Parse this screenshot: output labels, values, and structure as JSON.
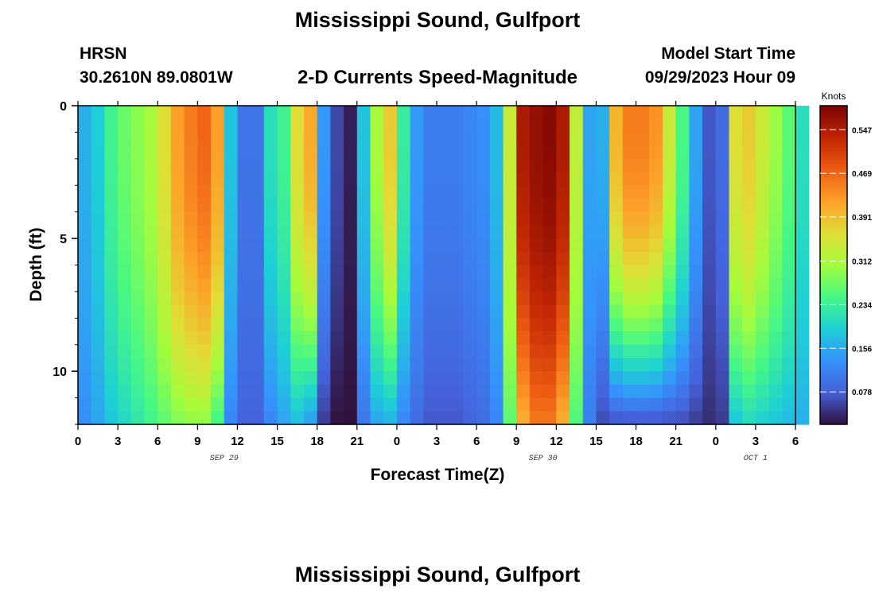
{
  "header": {
    "title": "Mississippi Sound, Gulfport",
    "station": "HRSN",
    "coords": "30.2610N  89.0801W",
    "subtitle": "2-D Currents Speed-Magnitude",
    "model_start_label": "Model Start Time",
    "model_start_value": "09/29/2023 Hour 09",
    "bottom_title": "Mississippi Sound, Gulfport"
  },
  "chart_data": {
    "type": "heatmap",
    "xlabel": "Forecast Time(Z)",
    "ylabel": "Depth (ft)",
    "x_tick_labels": [
      "0",
      "3",
      "6",
      "9",
      "12",
      "15",
      "18",
      "21",
      "0",
      "3",
      "6",
      "9",
      "12",
      "15",
      "18",
      "21",
      "0",
      "3",
      "6"
    ],
    "date_labels": [
      {
        "label": "SEP 29",
        "at_hour": 11
      },
      {
        "label": "SEP 30",
        "at_hour": 35
      },
      {
        "label": "OCT 1",
        "at_hour": 51
      }
    ],
    "x_range_hours": [
      0,
      54
    ],
    "y_range_ft": [
      0,
      12
    ],
    "y_ticks": [
      0,
      5,
      10
    ],
    "colorbar": {
      "title": "Knots",
      "ticks": [
        "0.078",
        "0.156",
        "0.234",
        "0.312",
        "0.391",
        "0.469",
        "0.547"
      ],
      "range": [
        0.02,
        0.59
      ]
    },
    "surface_speed_by_hour": [
      0.16,
      0.19,
      0.24,
      0.27,
      0.29,
      0.31,
      0.36,
      0.42,
      0.45,
      0.47,
      0.42,
      0.18,
      0.1,
      0.1,
      0.21,
      0.24,
      0.36,
      0.41,
      0.14,
      0.06,
      0.03,
      0.18,
      0.31,
      0.38,
      0.23,
      0.14,
      0.11,
      0.11,
      0.11,
      0.12,
      0.13,
      0.17,
      0.34,
      0.55,
      0.57,
      0.58,
      0.55,
      0.33,
      0.15,
      0.16,
      0.4,
      0.45,
      0.45,
      0.43,
      0.34,
      0.25,
      0.15,
      0.07,
      0.09,
      0.36,
      0.38,
      0.34,
      0.3,
      0.26,
      0.21
    ],
    "bottom_speed_by_hour": [
      0.13,
      0.15,
      0.18,
      0.2,
      0.22,
      0.24,
      0.26,
      0.28,
      0.29,
      0.29,
      0.24,
      0.12,
      0.08,
      0.08,
      0.12,
      0.15,
      0.17,
      0.14,
      0.05,
      0.02,
      0.02,
      0.1,
      0.15,
      0.16,
      0.12,
      0.09,
      0.07,
      0.07,
      0.07,
      0.08,
      0.09,
      0.12,
      0.26,
      0.4,
      0.45,
      0.45,
      0.4,
      0.25,
      0.11,
      0.06,
      0.06,
      0.06,
      0.06,
      0.06,
      0.06,
      0.06,
      0.05,
      0.04,
      0.05,
      0.18,
      0.2,
      0.19,
      0.18,
      0.17,
      0.16
    ],
    "grid": false
  }
}
